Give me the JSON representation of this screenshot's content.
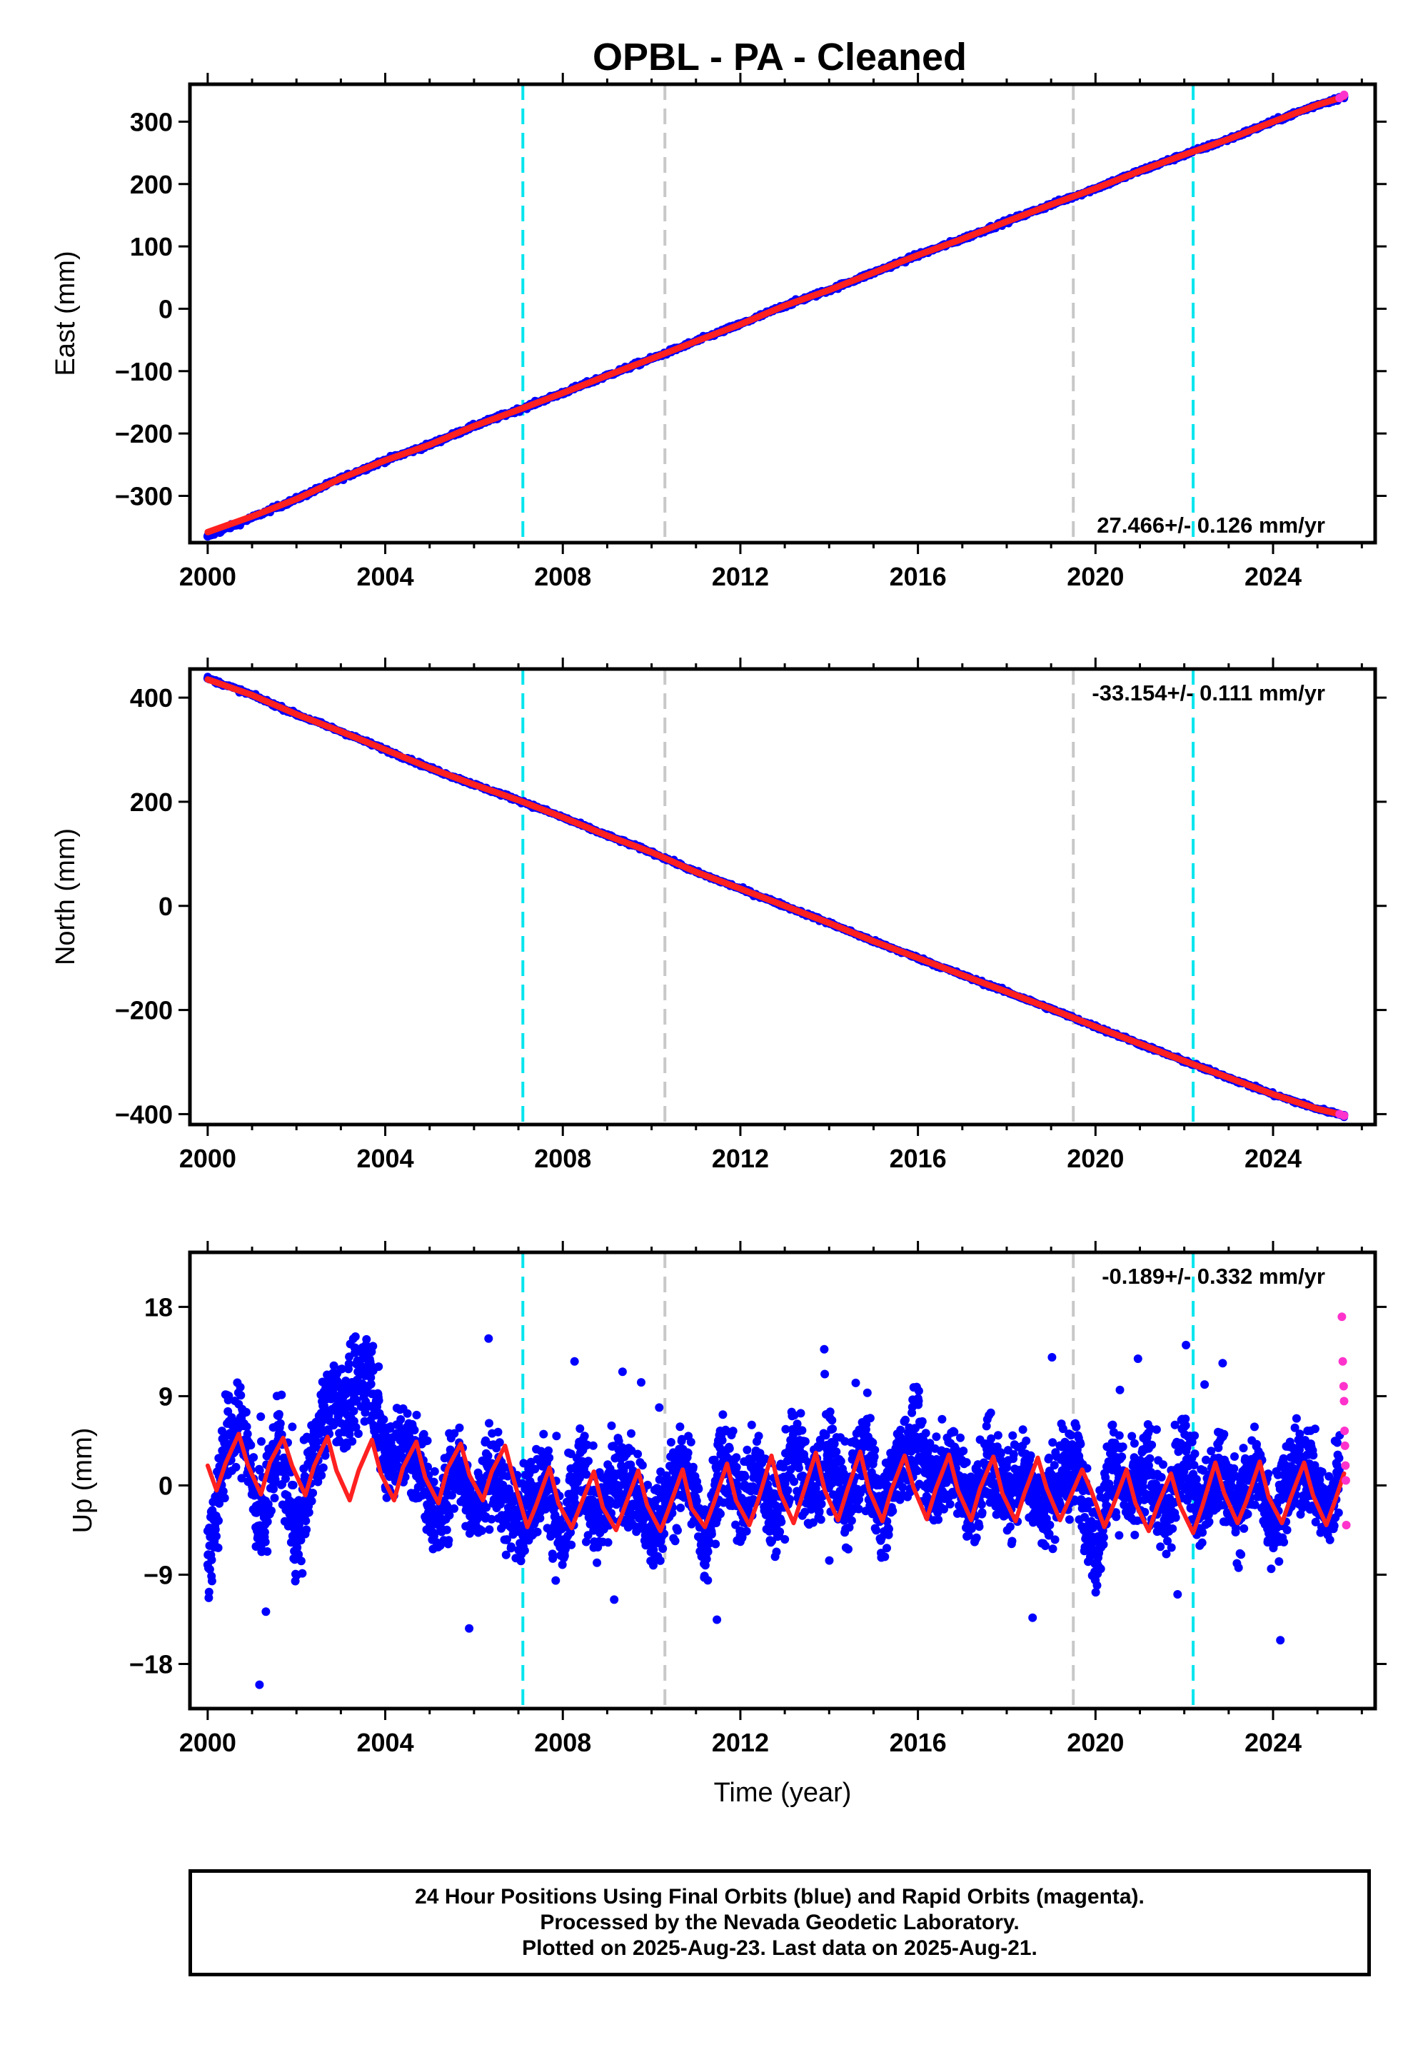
{
  "chart_data": [
    {
      "type": "scatter",
      "title": "OPBL  - PA - Cleaned",
      "ylabel": "East (mm)",
      "xlabel": "",
      "xlim": [
        1999.6,
        2026.3
      ],
      "ylim": [
        -375,
        360
      ],
      "xticks": [
        2000,
        2004,
        2008,
        2012,
        2016,
        2020,
        2024
      ],
      "yticks": [
        -300,
        -200,
        -100,
        0,
        100,
        200,
        300
      ],
      "ytick_labels": [
        "−300",
        "−200",
        "−100",
        "0",
        "100",
        "200",
        "300"
      ],
      "rate_label": "27.466+/- 0.126 mm/yr",
      "rate_position": "bottom-right",
      "vlines": [
        {
          "x": 2007.1,
          "color": "#00e5ee",
          "style": "dashed"
        },
        {
          "x": 2010.3,
          "color": "#c8c8c8",
          "style": "dashed"
        },
        {
          "x": 2019.5,
          "color": "#c8c8c8",
          "style": "dashed"
        },
        {
          "x": 2022.2,
          "color": "#00e5ee",
          "style": "dashed"
        }
      ],
      "series": [
        {
          "color": "#0000ff",
          "x": [
            2000.0,
            2001.0,
            2002.0,
            2003.0,
            2004.0,
            2005.0,
            2006.0,
            2007.0,
            2008.0,
            2009.0,
            2010.0,
            2011.0,
            2012.0,
            2013.0,
            2014.0,
            2015.0,
            2016.0,
            2017.0,
            2018.0,
            2019.0,
            2020.0,
            2021.0,
            2022.0,
            2023.0,
            2024.0,
            2025.0,
            2025.6
          ],
          "y": [
            -365,
            -335,
            -305,
            -272,
            -243,
            -218,
            -188,
            -162,
            -135,
            -107,
            -80,
            -52,
            -25,
            5,
            30,
            58,
            86,
            112,
            140,
            167,
            193,
            221,
            247,
            272,
            300,
            327,
            340
          ]
        },
        {
          "color": "#ff2020",
          "x": [
            2000.0,
            2001.0,
            2002.0,
            2003.0,
            2004.0,
            2005.0,
            2006.0,
            2007.0,
            2008.0,
            2009.0,
            2010.0,
            2011.0,
            2012.0,
            2013.0,
            2014.0,
            2015.0,
            2016.0,
            2017.0,
            2018.0,
            2019.0,
            2020.0,
            2021.0,
            2022.0,
            2023.0,
            2024.0,
            2025.0,
            2025.6
          ],
          "y": [
            -358,
            -333,
            -305,
            -272,
            -243,
            -218,
            -188,
            -162,
            -135,
            -107,
            -80,
            -52,
            -25,
            5,
            30,
            58,
            86,
            112,
            140,
            167,
            193,
            221,
            247,
            272,
            300,
            327,
            340
          ]
        },
        {
          "color": "#ff33cc",
          "x": [
            2025.5,
            2025.6
          ],
          "y": [
            338,
            343
          ]
        }
      ]
    },
    {
      "type": "scatter",
      "title": "",
      "ylabel": "North (mm)",
      "xlabel": "",
      "xlim": [
        1999.6,
        2026.3
      ],
      "ylim": [
        -420,
        455
      ],
      "xticks": [
        2000,
        2004,
        2008,
        2012,
        2016,
        2020,
        2024
      ],
      "yticks": [
        -400,
        -200,
        0,
        200,
        400
      ],
      "ytick_labels": [
        "−400",
        "−200",
        "0",
        "200",
        "400"
      ],
      "rate_label": "-33.154+/- 0.111 mm/yr",
      "rate_position": "top-right",
      "vlines": [
        {
          "x": 2007.1,
          "color": "#00e5ee",
          "style": "dashed"
        },
        {
          "x": 2010.3,
          "color": "#c8c8c8",
          "style": "dashed"
        },
        {
          "x": 2019.5,
          "color": "#c8c8c8",
          "style": "dashed"
        },
        {
          "x": 2022.2,
          "color": "#00e5ee",
          "style": "dashed"
        }
      ],
      "series": [
        {
          "color": "#0000ff",
          "x": [
            2000.0,
            2001.0,
            2002.0,
            2003.0,
            2004.0,
            2005.0,
            2006.0,
            2007.0,
            2008.0,
            2009.0,
            2010.0,
            2011.0,
            2012.0,
            2013.0,
            2014.0,
            2015.0,
            2016.0,
            2017.0,
            2018.0,
            2019.0,
            2020.0,
            2021.0,
            2022.0,
            2023.0,
            2024.0,
            2025.0,
            2025.6
          ],
          "y": [
            437,
            405,
            368,
            335,
            300,
            265,
            233,
            203,
            170,
            135,
            103,
            65,
            33,
            0,
            -33,
            -68,
            -100,
            -133,
            -165,
            -198,
            -232,
            -265,
            -298,
            -330,
            -362,
            -390,
            -402
          ]
        },
        {
          "color": "#ff2020",
          "x": [
            2000.0,
            2001.0,
            2002.0,
            2003.0,
            2004.0,
            2005.0,
            2006.0,
            2007.0,
            2008.0,
            2009.0,
            2010.0,
            2011.0,
            2012.0,
            2013.0,
            2014.0,
            2015.0,
            2016.0,
            2017.0,
            2018.0,
            2019.0,
            2020.0,
            2021.0,
            2022.0,
            2023.0,
            2024.0,
            2025.0,
            2025.6
          ],
          "y": [
            435,
            405,
            368,
            335,
            300,
            265,
            233,
            203,
            170,
            135,
            103,
            65,
            33,
            0,
            -33,
            -68,
            -100,
            -133,
            -165,
            -198,
            -232,
            -265,
            -298,
            -330,
            -362,
            -390,
            -402
          ]
        },
        {
          "color": "#ff33cc",
          "x": [
            2025.5,
            2025.6
          ],
          "y": [
            -400,
            -403
          ]
        }
      ]
    },
    {
      "type": "scatter",
      "title": "",
      "ylabel": "Up (mm)",
      "xlabel": "Time (year)",
      "xlim": [
        1999.6,
        2026.3
      ],
      "ylim": [
        -22.5,
        23.5
      ],
      "xticks": [
        2000,
        2004,
        2008,
        2012,
        2016,
        2020,
        2024
      ],
      "yticks": [
        -18,
        -9,
        0,
        9,
        18
      ],
      "ytick_labels": [
        "−18",
        "−9",
        "0",
        "9",
        "18"
      ],
      "rate_label": "-0.189+/- 0.332 mm/yr",
      "rate_position": "top-right",
      "vlines": [
        {
          "x": 2007.1,
          "color": "#00e5ee",
          "style": "dashed"
        },
        {
          "x": 2010.3,
          "color": "#c8c8c8",
          "style": "dashed"
        },
        {
          "x": 2019.5,
          "color": "#c8c8c8",
          "style": "dashed"
        },
        {
          "x": 2022.2,
          "color": "#00e5ee",
          "style": "dashed"
        }
      ],
      "series": [
        {
          "color": "#0000ff",
          "x": [
            2000.0,
            2000.4,
            2000.8,
            2001.2,
            2001.6,
            2002.0,
            2002.4,
            2002.8,
            2003.2,
            2003.6,
            2004.0,
            2004.4,
            2004.8,
            2005.2,
            2005.6,
            2006.0,
            2006.4,
            2006.8,
            2007.2,
            2007.6,
            2008.0,
            2008.4,
            2008.8,
            2009.2,
            2009.6,
            2010.0,
            2010.4,
            2010.8,
            2011.2,
            2011.6,
            2012.0,
            2012.4,
            2012.8,
            2013.2,
            2013.6,
            2014.0,
            2014.4,
            2014.8,
            2015.2,
            2015.6,
            2016.0,
            2016.4,
            2016.8,
            2017.2,
            2017.6,
            2018.0,
            2018.4,
            2018.8,
            2019.2,
            2019.6,
            2020.0,
            2020.4,
            2020.8,
            2021.2,
            2021.6,
            2022.0,
            2022.4,
            2022.8,
            2023.2,
            2023.6,
            2024.0,
            2024.4,
            2024.8,
            2025.2,
            2025.5
          ],
          "y": [
            -8,
            4,
            6,
            -5,
            5,
            -6,
            4,
            9,
            8,
            12,
            3,
            4,
            2,
            -4,
            3,
            -3,
            2,
            -3,
            -2,
            1,
            -6,
            2,
            -4,
            1,
            0,
            -5,
            -1,
            2,
            -6,
            3,
            -2,
            2,
            -4,
            4,
            -1,
            3,
            -2,
            4,
            -3,
            3,
            4,
            0,
            3,
            -3,
            3,
            -1,
            2,
            -3,
            1,
            2,
            -7,
            3,
            -2,
            2,
            -4,
            4,
            -3,
            2,
            -3,
            2,
            -4,
            1,
            2,
            -3,
            1
          ]
        },
        {
          "color": "#ff2020",
          "x": [
            2000.0,
            2000.2,
            2000.4,
            2000.7,
            2000.9,
            2001.2,
            2001.4,
            2001.7,
            2001.9,
            2002.2,
            2002.4,
            2002.7,
            2002.9,
            2003.2,
            2003.4,
            2003.7,
            2003.9,
            2004.2,
            2004.4,
            2004.7,
            2004.9,
            2005.2,
            2005.4,
            2005.7,
            2005.9,
            2006.2,
            2006.4,
            2006.7,
            2006.9,
            2007.2,
            2007.4,
            2007.7,
            2007.9,
            2008.2,
            2008.4,
            2008.7,
            2008.9,
            2009.2,
            2009.4,
            2009.7,
            2009.9,
            2010.2,
            2010.4,
            2010.7,
            2010.9,
            2011.2,
            2011.4,
            2011.7,
            2011.9,
            2012.2,
            2012.4,
            2012.7,
            2012.9,
            2013.2,
            2013.4,
            2013.7,
            2013.9,
            2014.2,
            2014.4,
            2014.7,
            2014.9,
            2015.2,
            2015.4,
            2015.7,
            2015.9,
            2016.2,
            2016.4,
            2016.7,
            2016.9,
            2017.2,
            2017.4,
            2017.7,
            2017.9,
            2018.2,
            2018.4,
            2018.7,
            2018.9,
            2019.2,
            2019.4,
            2019.7,
            2019.9,
            2020.2,
            2020.4,
            2020.7,
            2020.9,
            2021.2,
            2021.4,
            2021.7,
            2021.9,
            2022.2,
            2022.4,
            2022.7,
            2022.9,
            2023.2,
            2023.4,
            2023.7,
            2023.9,
            2024.2,
            2024.4,
            2024.7,
            2024.9,
            2025.2,
            2025.4,
            2025.6
          ],
          "y": [
            2.0,
            -0.5,
            2.2,
            5.2,
            2.1,
            -0.9,
            2.3,
            4.8,
            2.0,
            -1.0,
            2.0,
            4.9,
            1.5,
            -1.5,
            1.5,
            4.6,
            1.2,
            -1.5,
            1.8,
            4.4,
            0.8,
            -1.8,
            1.7,
            4.2,
            1.0,
            -1.5,
            1.4,
            4.0,
            0.5,
            -4.2,
            -2.0,
            1.8,
            -1.8,
            -4.3,
            -2.0,
            1.4,
            -2.2,
            -4.5,
            -2.1,
            1.5,
            -2.0,
            -4.6,
            -2.2,
            1.6,
            -2.3,
            -4.2,
            -1.8,
            2.2,
            -1.5,
            -4.0,
            -1.5,
            3.0,
            -0.8,
            -3.8,
            -1.0,
            3.3,
            -0.5,
            -3.5,
            -0.6,
            3.4,
            -0.5,
            -3.6,
            -0.5,
            3.0,
            -0.2,
            -3.4,
            -0.4,
            3.1,
            -0.5,
            -3.5,
            -0.3,
            2.9,
            -0.8,
            -3.6,
            -0.8,
            2.8,
            -0.3,
            -3.5,
            -1.5,
            1.6,
            -0.5,
            -4.2,
            -2.0,
            1.6,
            -1.8,
            -4.6,
            -2.0,
            1.2,
            -2.0,
            -4.8,
            -2.2,
            2.3,
            -0.8,
            -3.8,
            -1.6,
            2.4,
            -1.2,
            -3.8,
            -1.2,
            2.3,
            -1.0,
            -4.0,
            -1.5,
            1.2
          ]
        },
        {
          "color": "#ff33cc",
          "x": [
            2025.55,
            2025.57,
            2025.59,
            2025.6,
            2025.61,
            2025.62,
            2025.63,
            2025.64,
            2025.65
          ],
          "y": [
            17,
            12.5,
            10,
            8.5,
            5.5,
            4,
            2,
            0.5,
            -4
          ]
        }
      ]
    }
  ],
  "footer": {
    "line1": "24 Hour Positions Using Final Orbits (blue) and Rapid Orbits (magenta).",
    "line2": "Processed by the Nevada Geodetic Laboratory.",
    "line3": "Plotted on 2025-Aug-23. Last data on 2025-Aug-21."
  }
}
